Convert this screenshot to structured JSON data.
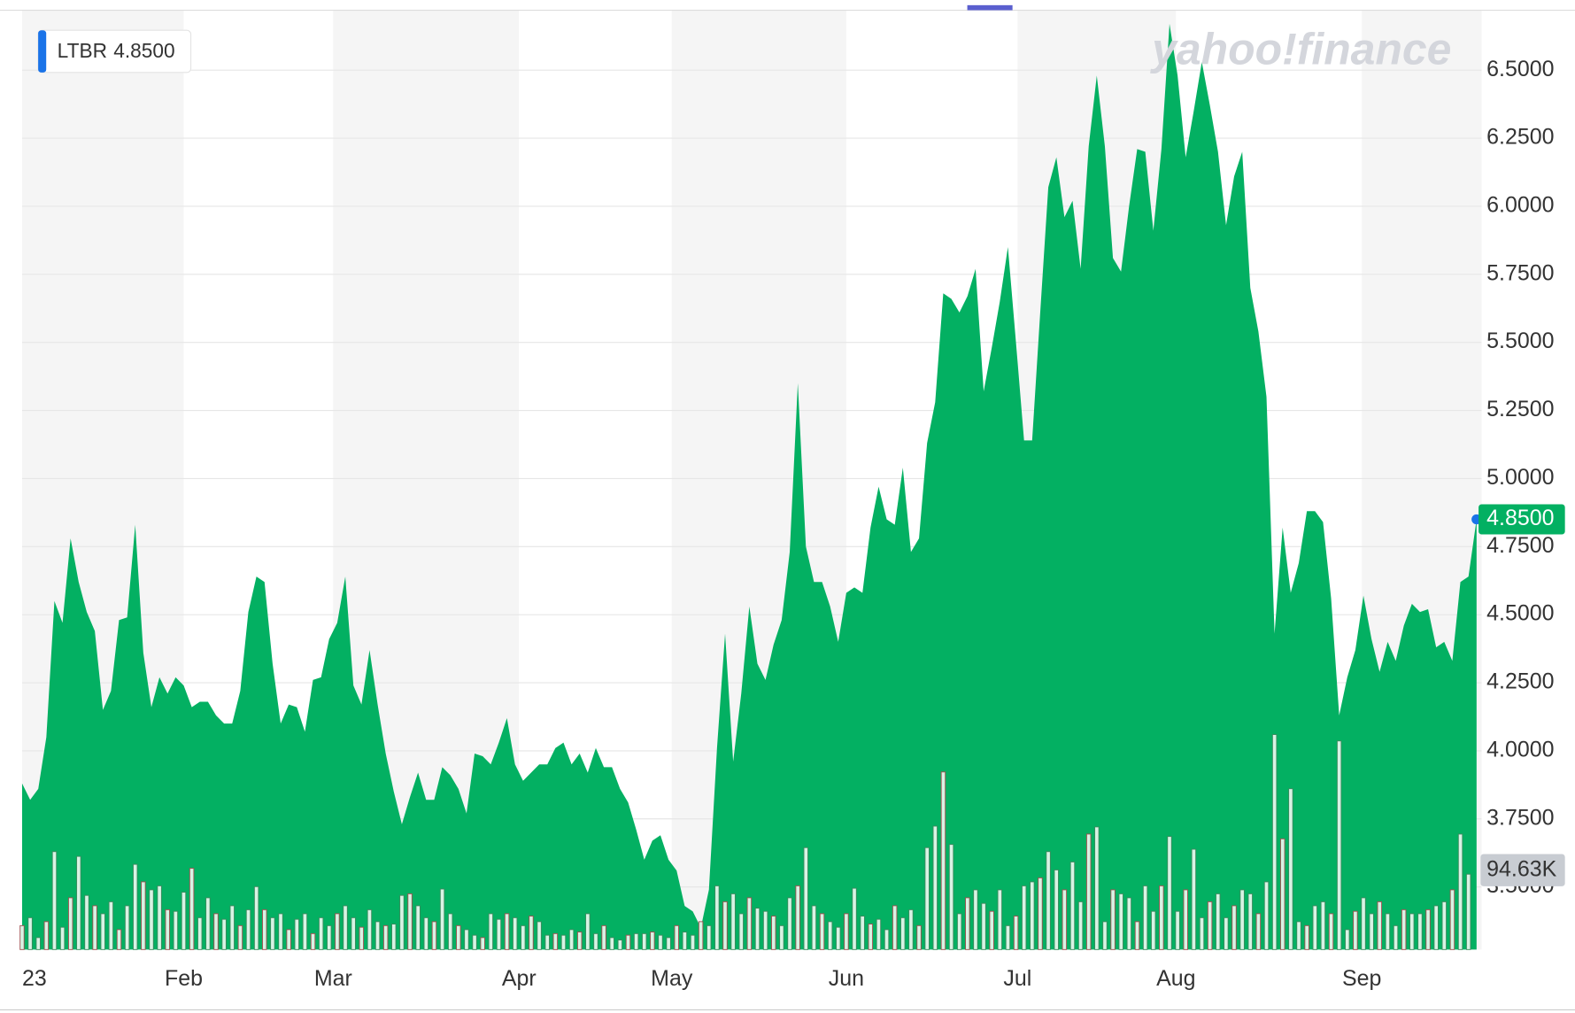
{
  "chart_data": {
    "type": "area",
    "watermark": "yahoo!finance",
    "xlim": [
      0,
      180
    ],
    "xticks": [
      {
        "value": 0,
        "label": "23"
      },
      {
        "value": 20,
        "label": "Feb"
      },
      {
        "value": 38.5,
        "label": "Mar"
      },
      {
        "value": 61.5,
        "label": "Apr"
      },
      {
        "value": 80.4,
        "label": "May"
      },
      {
        "value": 102,
        "label": "Jun"
      },
      {
        "value": 123.2,
        "label": "Jul"
      },
      {
        "value": 142.8,
        "label": "Aug"
      },
      {
        "value": 165.8,
        "label": "Sep"
      }
    ],
    "ylim": [
      3.27,
      6.72
    ],
    "yticks": [
      {
        "value": 3.5,
        "label": "3.5000"
      },
      {
        "value": 3.75,
        "label": "3.7500"
      },
      {
        "value": 4,
        "label": "4.0000"
      },
      {
        "value": 4.25,
        "label": "4.2500"
      },
      {
        "value": 4.5,
        "label": "4.5000"
      },
      {
        "value": 4.75,
        "label": "4.7500"
      },
      {
        "value": 5,
        "label": "5.0000"
      },
      {
        "value": 5.25,
        "label": "5.2500"
      },
      {
        "value": 5.5,
        "label": "5.5000"
      },
      {
        "value": 5.75,
        "label": "5.7500"
      },
      {
        "value": 6,
        "label": "6.0000"
      },
      {
        "value": 6.25,
        "label": "6.2500"
      },
      {
        "value": 6.5,
        "label": "6.5000"
      }
    ],
    "grid": true,
    "price_tag": {
      "value": 4.85,
      "label": "4.8500"
    },
    "volume_tag": {
      "value": 94.63,
      "label": "94.63K"
    },
    "series": [
      {
        "name": "LTBR",
        "color": "#03b062",
        "values": [
          3.88,
          3.82,
          3.86,
          4.05,
          4.55,
          4.47,
          4.78,
          4.62,
          4.51,
          4.44,
          4.15,
          4.22,
          4.48,
          4.49,
          4.83,
          4.36,
          4.16,
          4.27,
          4.21,
          4.27,
          4.24,
          4.16,
          4.18,
          4.18,
          4.13,
          4.1,
          4.1,
          4.22,
          4.51,
          4.64,
          4.62,
          4.32,
          4.1,
          4.17,
          4.16,
          4.07,
          4.26,
          4.27,
          4.41,
          4.47,
          4.64,
          4.24,
          4.17,
          4.37,
          4.17,
          3.99,
          3.85,
          3.73,
          3.83,
          3.92,
          3.82,
          3.82,
          3.94,
          3.91,
          3.86,
          3.77,
          3.99,
          3.98,
          3.95,
          4.03,
          4.12,
          3.95,
          3.89,
          3.92,
          3.95,
          3.95,
          4.01,
          4.03,
          3.95,
          3.99,
          3.92,
          4.01,
          3.94,
          3.94,
          3.86,
          3.81,
          3.71,
          3.6,
          3.67,
          3.69,
          3.6,
          3.56,
          3.43,
          3.41,
          3.35,
          3.49,
          4.01,
          4.43,
          3.96,
          4.21,
          4.53,
          4.32,
          4.26,
          4.39,
          4.48,
          4.73,
          5.35,
          4.75,
          4.62,
          4.62,
          4.53,
          4.4,
          4.58,
          4.6,
          4.58,
          4.82,
          4.97,
          4.85,
          4.83,
          5.04,
          4.73,
          4.78,
          5.13,
          5.28,
          5.68,
          5.66,
          5.61,
          5.67,
          5.77,
          5.32,
          5.48,
          5.65,
          5.85,
          5.5,
          5.14,
          5.14,
          5.61,
          6.07,
          6.18,
          5.96,
          6.02,
          5.77,
          6.22,
          6.48,
          6.22,
          5.81,
          5.76,
          6.0,
          6.21,
          6.2,
          5.91,
          6.21,
          6.67,
          6.48,
          6.18,
          6.35,
          6.53,
          6.37,
          6.2,
          5.93,
          6.11,
          6.2,
          5.7,
          5.54,
          5.3,
          4.43,
          4.82,
          4.58,
          4.69,
          4.88,
          4.88,
          4.84,
          4.56,
          4.13,
          4.27,
          4.37,
          4.57,
          4.41,
          4.29,
          4.4,
          4.33,
          4.46,
          4.54,
          4.51,
          4.52,
          4.38,
          4.4,
          4.33,
          4.62,
          4.64,
          4.85
        ]
      },
      {
        "name": "Volume",
        "color": "#d8f3e4",
        "values": [
          30,
          40,
          15,
          35,
          123,
          28,
          65,
          117,
          68,
          55,
          45,
          60,
          25,
          55,
          107,
          85,
          75,
          80,
          50,
          48,
          72,
          102,
          40,
          65,
          45,
          38,
          55,
          30,
          50,
          79,
          50,
          40,
          45,
          25,
          38,
          45,
          20,
          40,
          30,
          45,
          55,
          40,
          28,
          50,
          35,
          30,
          32,
          68,
          70,
          55,
          40,
          35,
          76,
          45,
          30,
          25,
          18,
          15,
          45,
          38,
          45,
          40,
          30,
          42,
          35,
          18,
          20,
          18,
          25,
          22,
          45,
          20,
          30,
          15,
          12,
          18,
          20,
          20,
          22,
          18,
          15,
          30,
          22,
          18,
          35,
          30,
          80,
          60,
          70,
          45,
          65,
          52,
          48,
          42,
          30,
          65,
          80,
          128,
          55,
          45,
          35,
          28,
          45,
          77,
          42,
          32,
          38,
          25,
          55,
          40,
          50,
          30,
          128,
          155,
          223,
          132,
          45,
          65,
          75,
          58,
          48,
          75,
          30,
          42,
          80,
          85,
          90,
          123,
          100,
          75,
          110,
          60,
          145,
          154,
          35,
          75,
          70,
          65,
          35,
          80,
          48,
          80,
          142,
          48,
          75,
          126,
          40,
          60,
          70,
          40,
          55,
          75,
          70,
          45,
          85,
          270,
          139,
          202,
          35,
          30,
          55,
          60,
          45,
          262,
          25,
          48,
          65,
          45,
          60,
          45,
          30,
          50,
          45,
          45,
          50,
          55,
          60,
          75,
          145,
          94.63
        ]
      }
    ]
  }
}
